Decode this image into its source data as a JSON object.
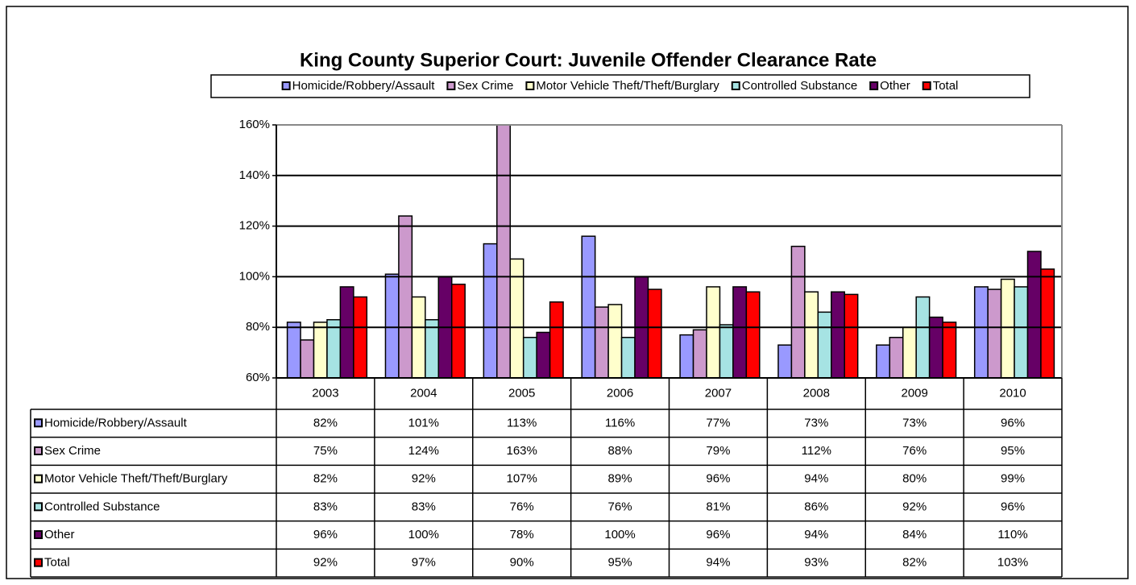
{
  "chart_data": {
    "type": "bar",
    "title": "King County Superior Court: Juvenile Offender Clearance Rate",
    "categories": [
      "2003",
      "2004",
      "2005",
      "2006",
      "2007",
      "2008",
      "2009",
      "2010"
    ],
    "series": [
      {
        "name": "Homicide/Robbery/Assault",
        "color": "#9999ff",
        "values": [
          82,
          101,
          113,
          116,
          77,
          73,
          73,
          96
        ],
        "value_labels": [
          "82%",
          "101%",
          "113%",
          "116%",
          "77%",
          "73%",
          "73%",
          "96%"
        ]
      },
      {
        "name": "Sex Crime",
        "color": "#cc99cc",
        "values": [
          75,
          124,
          163,
          88,
          79,
          112,
          76,
          95
        ],
        "value_labels": [
          "75%",
          "124%",
          "163%",
          "88%",
          "79%",
          "112%",
          "76%",
          "95%"
        ]
      },
      {
        "name": "Motor Vehicle Theft/Theft/Burglary",
        "color": "#ffffcc",
        "values": [
          82,
          92,
          107,
          89,
          96,
          94,
          80,
          99
        ],
        "value_labels": [
          "82%",
          "92%",
          "107%",
          "89%",
          "96%",
          "94%",
          "80%",
          "99%"
        ]
      },
      {
        "name": "Controlled Substance",
        "color": "#a6e3e3",
        "values": [
          83,
          83,
          76,
          76,
          81,
          86,
          92,
          96
        ],
        "value_labels": [
          "83%",
          "83%",
          "76%",
          "76%",
          "81%",
          "86%",
          "92%",
          "96%"
        ]
      },
      {
        "name": "Other",
        "color": "#660066",
        "values": [
          96,
          100,
          78,
          100,
          96,
          94,
          84,
          110
        ],
        "value_labels": [
          "96%",
          "100%",
          "78%",
          "100%",
          "96%",
          "94%",
          "84%",
          "110%"
        ]
      },
      {
        "name": "Total",
        "color": "#ff0000",
        "values": [
          92,
          97,
          90,
          95,
          94,
          93,
          82,
          103
        ],
        "value_labels": [
          "92%",
          "97%",
          "90%",
          "95%",
          "94%",
          "93%",
          "82%",
          "103%"
        ]
      }
    ],
    "ylim": [
      60,
      160
    ],
    "yticks": [
      {
        "value": 60,
        "label": "60%"
      },
      {
        "value": 80,
        "label": "80%"
      },
      {
        "value": 100,
        "label": "100%"
      },
      {
        "value": 120,
        "label": "120%"
      },
      {
        "value": 140,
        "label": "140%"
      },
      {
        "value": 160,
        "label": "160%"
      }
    ],
    "grid": true
  }
}
